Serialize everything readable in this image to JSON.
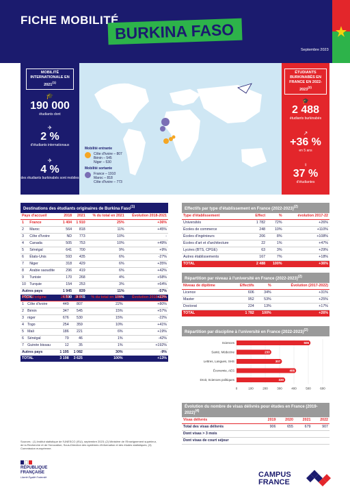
{
  "header": {
    "fiche": "FICHE MOBILITÉ",
    "country": "BURKINA FASO",
    "date": "Septembre 2023"
  },
  "left": {
    "title": "MOBILITÉ INTERNATIONALE EN 2021",
    "title_sup": "(1)",
    "students": "190 000",
    "students_label": "étudiants dont",
    "pct_intl": "2 %",
    "pct_intl_label": "d'étudiants internationaux",
    "pct_bf": "4 %",
    "pct_bf_label": "des étudiants burkinabés sont mobiles"
  },
  "map": {
    "in_title": "Mobilité entrante",
    "in_items": [
      "Côte d'Ivoire – 807",
      "Bénin – 545",
      "Niger – 530"
    ],
    "out_title": "Mobilité sortante",
    "out_items": [
      "France – 1910",
      "Maroc – 818",
      "Côte d'Ivoire – 773"
    ]
  },
  "right": {
    "title": "ÉTUDIANTS BURKINABÈS EN FRANCE EN 2022-2023",
    "title_sup": "(2)",
    "students": "2 488",
    "students_label": "étudiants burkinabés",
    "growth": "+36 %",
    "growth_label": "en 5 ans",
    "women": "37 %",
    "women_label": "d'étudiantes"
  },
  "dest": {
    "title": "Destinations des étudiants originaires de Burkina Faso",
    "sup": "(1)",
    "cols": [
      "Pays d'accueil",
      "2018",
      "2021",
      "% du total en 2021",
      "Évolution 2018-2021"
    ],
    "rows": [
      [
        "1",
        "France",
        "1 404",
        "1 910",
        "25%",
        "+36%"
      ],
      [
        "2",
        "Maroc",
        "564",
        "818",
        "11%",
        "+45%"
      ],
      [
        "3",
        "Côte d'Ivoire",
        "ND",
        "773",
        "10%",
        "-"
      ],
      [
        "4",
        "Canada",
        "505",
        "753",
        "10%",
        "+49%"
      ],
      [
        "5",
        "Sénégal",
        "641",
        "700",
        "9%",
        "+9%"
      ],
      [
        "6",
        "États-Unis",
        "593",
        "435",
        "6%",
        "-27%"
      ],
      [
        "7",
        "Niger",
        "318",
        "429",
        "6%",
        "+35%"
      ],
      [
        "8",
        "Arabie saoudite",
        "296",
        "419",
        "6%",
        "+42%"
      ],
      [
        "9",
        "Tunisie",
        "170",
        "268",
        "4%",
        "+58%"
      ],
      [
        "10",
        "Turquie",
        "154",
        "253",
        "3%",
        "+64%"
      ]
    ],
    "autres": [
      "Autres pays",
      "1 945",
      "839",
      "11%",
      "-57%"
    ],
    "total": [
      "TOTAL",
      "6 590",
      "8 055",
      "100%",
      "+22%"
    ]
  },
  "origin": {
    "cols": [
      "Pays d'origine",
      "2018",
      "2021",
      "% du total en 2021",
      "Évolution 2018-2021"
    ],
    "rows": [
      [
        "1",
        "Côte d'ivoire",
        "449",
        "807",
        "22%",
        "+80%"
      ],
      [
        "2",
        "Bénin",
        "347",
        "545",
        "15%",
        "+57%"
      ],
      [
        "3",
        "niger",
        "676",
        "530",
        "15%",
        "-22%"
      ],
      [
        "4",
        "Togo",
        "254",
        "359",
        "10%",
        "+41%"
      ],
      [
        "5",
        "Mali",
        "186",
        "221",
        "6%",
        "+19%"
      ],
      [
        "6",
        "Sénégal",
        "79",
        "46",
        "1%",
        "-42%"
      ],
      [
        "7",
        "Guinée bissau",
        "12",
        "35",
        "1%",
        "+192%"
      ]
    ],
    "autres": [
      "Autres pays",
      "1 195",
      "1 082",
      "30%",
      "-9%"
    ],
    "total": [
      "TOTAL",
      "3 198",
      "3 625",
      "100%",
      "+13%"
    ]
  },
  "etab": {
    "title": "Effectifs par type d'établissement en France (2022-2023)",
    "sup": "(2)",
    "cols": [
      "Type d'établissement",
      "Effect",
      "%",
      "évolution 2017-22"
    ],
    "rows": [
      [
        "Universités",
        "1 782",
        "72%",
        "+26%"
      ],
      [
        "Écoles de commerce",
        "248",
        "10%",
        "+110%"
      ],
      [
        "Écoles d'ingénieurs",
        "206",
        "8%",
        "+108%"
      ],
      [
        "Écoles d'art et d'architecture",
        "22",
        "1%",
        "+47%"
      ],
      [
        "Lycées (BTS, CPGE)",
        "63",
        "3%",
        "+29%"
      ],
      [
        "Autres établissements",
        "167",
        "7%",
        "+18%"
      ]
    ],
    "total": [
      "TOTAL",
      "2 488",
      "100%",
      "+36%"
    ]
  },
  "niveau": {
    "title": "Répartition par niveau à l'université en France (2022-2023)",
    "sup": "(2)",
    "cols": [
      "Niveau de diplôme",
      "Effectifs",
      "%",
      "Évolution (2017-2022)"
    ],
    "rows": [
      [
        "Licence",
        "606",
        "34%",
        "+31%"
      ],
      [
        "Master",
        "952",
        "53%",
        "+25%"
      ],
      [
        "Doctorat",
        "224",
        "13%",
        "+17%"
      ]
    ],
    "total": [
      "TOTAL",
      "1 782",
      "100%",
      "+26%"
    ]
  },
  "discipline": {
    "title": "Répartition par discipline à l'université en France (2022-2023)",
    "sup": "(2)"
  },
  "chart_data": {
    "type": "bar",
    "orientation": "horizontal",
    "categories": [
      "Sciences",
      "Santé, Médecine",
      "Lettres, Langues, SHS",
      "Économie, AES",
      "Droit, Sciences politiques"
    ],
    "values": [
      506,
      233,
      307,
      406,
      330
    ],
    "xlim": [
      0,
      600
    ],
    "xticks": [
      "0",
      "100",
      "200",
      "300",
      "400",
      "500",
      "600"
    ],
    "color": "#e3262b"
  },
  "visas": {
    "title": "Évolution du nombre de visas délivrés pour études en France (2019-2022)",
    "sup": "(4)",
    "cols": [
      "Visas délivrés",
      "2019",
      "2020",
      "2021",
      "2022"
    ],
    "rows": [
      [
        "Total des visas délivrés",
        "906",
        "655",
        "679",
        "907"
      ],
      [
        "Dont visas > 3 mois",
        "",
        "",
        "",
        ""
      ],
      [
        "Dont visas de court séjour",
        "",
        "",
        "",
        ""
      ]
    ]
  },
  "footer": {
    "sources": "Sources : (1) Institut statistique de l'UNESCO (ISU), septembre 2023; (2) Ministère de l'Enseignement supérieur, de la Recherche et de l'Innovation; Sous-Direction des systèmes d'information et des études statistiques; (3) Commission européenne.",
    "rf1": "RÉPUBLIQUE",
    "rf2": "FRANÇAISE",
    "rf3": "Liberté Égalité Fraternité",
    "cf1": "CAMPUS",
    "cf2": "FRANCE"
  },
  "colors": {
    "navy": "#1b1b6e",
    "red": "#e3262b",
    "green": "#2db34a",
    "lightblue": "#cfe7f4"
  }
}
